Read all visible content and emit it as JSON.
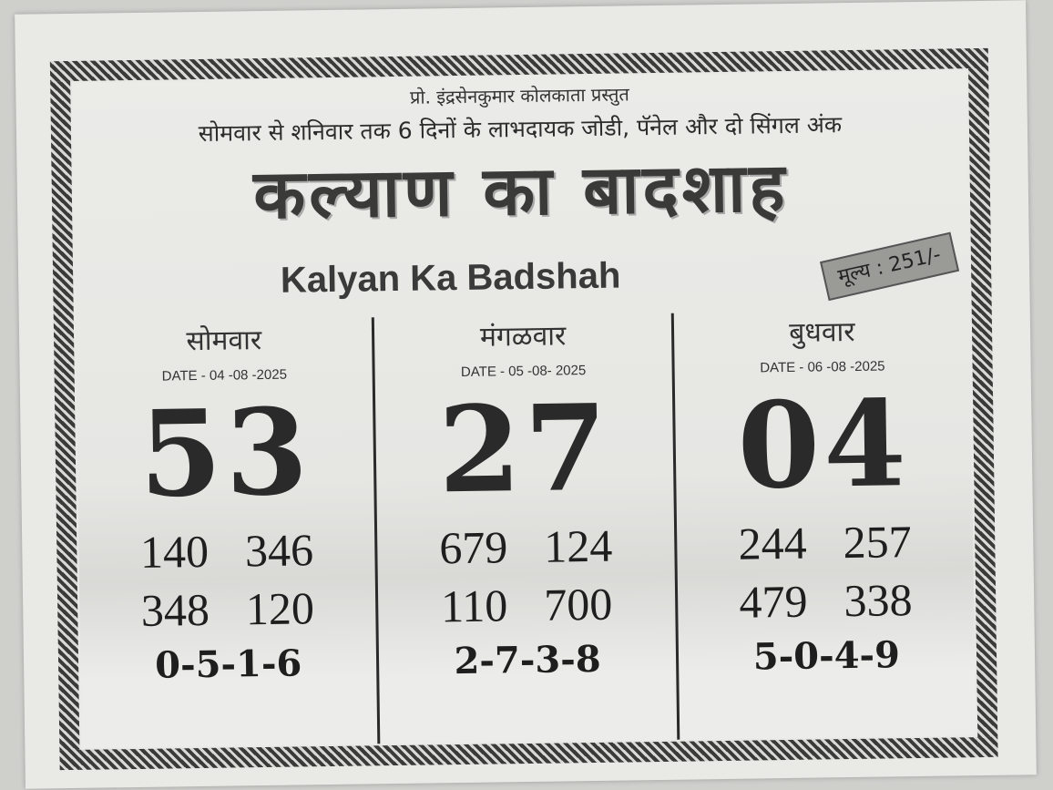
{
  "header": {
    "presenter": "प्रो. इंद्रसेनकुमार कोलकाता प्रस्तुत",
    "subtitle": "सोमवार से शनिवार तक 6 दिनों के लाभदायक जोडी, पॅनेल और दो सिंगल अंक",
    "title_hindi": "कल्याण का बादशाह",
    "title_english": "Kalyan Ka Badshah",
    "price": "मूल्य : 251/-"
  },
  "days": [
    {
      "day": "सोमवार",
      "date": "DATE - 04 -08 -2025",
      "jodi": "53",
      "panels": [
        "140",
        "346",
        "348",
        "120"
      ],
      "singles": "0-5-1-6"
    },
    {
      "day": "मंगळवार",
      "date": "DATE - 05 -08- 2025",
      "jodi": "27",
      "panels": [
        "679",
        "124",
        "110",
        "700"
      ],
      "singles": "2-7-3-8"
    },
    {
      "day": "बुधवार",
      "date": "DATE - 06 -08 -2025",
      "jodi": "04",
      "panels": [
        "244",
        "257",
        "479",
        "338"
      ],
      "singles": "5-0-4-9"
    }
  ]
}
